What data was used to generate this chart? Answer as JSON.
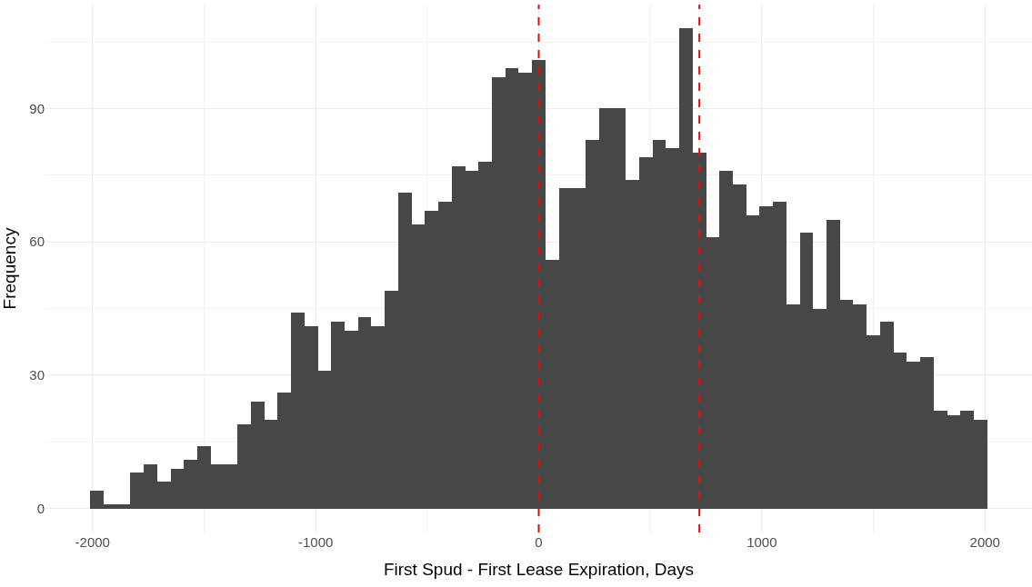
{
  "chart_data": {
    "type": "histogram",
    "xlabel": "First Spud - First Lease Expiration, Days",
    "ylabel": "Frequency",
    "bins": [
      -2010,
      -1950,
      -1890,
      -1830,
      -1770,
      -1710,
      -1650,
      -1590,
      -1530,
      -1470,
      -1410,
      -1350,
      -1290,
      -1230,
      -1170,
      -1110,
      -1050,
      -990,
      -930,
      -870,
      -810,
      -750,
      -690,
      -630,
      -570,
      -510,
      -450,
      -390,
      -330,
      -270,
      -210,
      -150,
      -90,
      -30,
      30,
      90,
      150,
      210,
      270,
      330,
      390,
      450,
      510,
      570,
      630,
      690,
      750,
      810,
      870,
      930,
      990,
      1050,
      1110,
      1170,
      1230,
      1290,
      1350,
      1410,
      1470,
      1530,
      1590,
      1650,
      1710,
      1770,
      1830,
      1890,
      1950,
      2010
    ],
    "values": [
      4,
      1,
      1,
      8,
      10,
      6,
      9,
      11,
      14,
      10,
      10,
      19,
      24,
      20,
      26,
      44,
      41,
      31,
      42,
      40,
      43,
      41,
      49,
      71,
      64,
      67,
      69,
      77,
      76,
      78,
      97,
      99,
      98,
      101,
      56,
      72,
      72,
      83,
      90,
      90,
      74,
      79,
      83,
      81,
      108,
      80,
      61,
      76,
      73,
      66,
      68,
      69,
      46,
      62,
      45,
      65,
      47,
      46,
      39,
      42,
      35,
      33,
      34,
      22,
      21,
      22,
      20
    ],
    "color": "#474747",
    "xlim": [
      -2211,
      2211
    ],
    "ylim": [
      -5.4,
      113.4
    ],
    "xticks": [
      -2000,
      -1000,
      0,
      1000,
      2000
    ],
    "yticks": [
      0,
      30,
      60,
      90
    ],
    "grid": true,
    "ref_lines": [
      {
        "axis": "x",
        "value": 0,
        "color": "#ff0000",
        "line_style": "dashed"
      },
      {
        "axis": "x",
        "value": 720,
        "color": "#ff0000",
        "line_style": "dashed"
      }
    ]
  }
}
